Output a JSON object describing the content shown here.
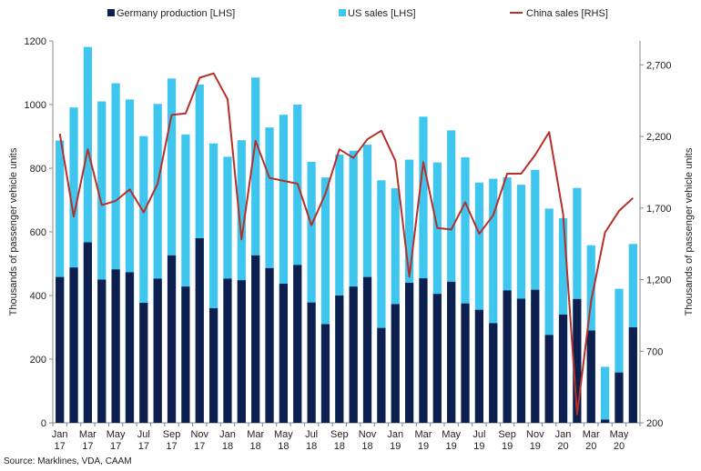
{
  "chart_data": {
    "type": "bar",
    "title": "",
    "categories": [
      "Jan 17",
      "Feb 17",
      "Mar 17",
      "Apr 17",
      "May 17",
      "Jun 17",
      "Jul 17",
      "Aug 17",
      "Sep 17",
      "Oct 17",
      "Nov 17",
      "Dec 17",
      "Jan 18",
      "Feb 18",
      "Mar 18",
      "Apr 18",
      "May 18",
      "Jun 18",
      "Jul 18",
      "Aug 18",
      "Sep 18",
      "Oct 18",
      "Nov 18",
      "Dec 18",
      "Jan 19",
      "Feb 19",
      "Mar 19",
      "Apr 19",
      "May 19",
      "Jun 19",
      "Jul 19",
      "Aug 19",
      "Sep 19",
      "Oct 19",
      "Nov 19",
      "Dec 19",
      "Jan 20",
      "Feb 20",
      "Mar 20",
      "Apr 20",
      "May 20",
      "Jun 20"
    ],
    "x_tick_labels": [
      {
        "index": 0,
        "month": "Jan",
        "year": "17"
      },
      {
        "index": 2,
        "month": "Mar",
        "year": "17"
      },
      {
        "index": 4,
        "month": "May",
        "year": "17"
      },
      {
        "index": 6,
        "month": "Jul",
        "year": "17"
      },
      {
        "index": 8,
        "month": "Sep",
        "year": "17"
      },
      {
        "index": 10,
        "month": "Nov",
        "year": "17"
      },
      {
        "index": 12,
        "month": "Jan",
        "year": "18"
      },
      {
        "index": 14,
        "month": "Mar",
        "year": "18"
      },
      {
        "index": 16,
        "month": "May",
        "year": "18"
      },
      {
        "index": 18,
        "month": "Jul",
        "year": "18"
      },
      {
        "index": 20,
        "month": "Sep",
        "year": "18"
      },
      {
        "index": 22,
        "month": "Nov",
        "year": "18"
      },
      {
        "index": 24,
        "month": "Jan",
        "year": "19"
      },
      {
        "index": 26,
        "month": "Mar",
        "year": "19"
      },
      {
        "index": 28,
        "month": "May",
        "year": "19"
      },
      {
        "index": 30,
        "month": "Jul",
        "year": "19"
      },
      {
        "index": 32,
        "month": "Sep",
        "year": "19"
      },
      {
        "index": 34,
        "month": "Nov",
        "year": "19"
      },
      {
        "index": 36,
        "month": "Jan",
        "year": "20"
      },
      {
        "index": 38,
        "month": "Mar",
        "year": "20"
      },
      {
        "index": 40,
        "month": "May",
        "year": "20"
      }
    ],
    "series": [
      {
        "name": "Germany production [LHS]",
        "type": "bar",
        "axis": "left",
        "color": "#0d1f4e",
        "values": [
          458,
          488,
          567,
          450,
          482,
          473,
          377,
          453,
          526,
          428,
          580,
          360,
          453,
          448,
          526,
          486,
          437,
          496,
          378,
          310,
          400,
          428,
          458,
          298,
          373,
          440,
          454,
          405,
          443,
          375,
          355,
          313,
          416,
          390,
          418,
          276,
          340,
          389,
          290,
          10,
          158,
          300
        ]
      },
      {
        "name": "US sales [LHS]",
        "type": "bar",
        "axis": "left",
        "color": "#3ec6ee",
        "values": [
          887,
          991,
          1181,
          1010,
          1067,
          1016,
          901,
          1002,
          1082,
          906,
          1063,
          878,
          836,
          888,
          1085,
          928,
          968,
          1000,
          820,
          771,
          843,
          855,
          874,
          762,
          737,
          827,
          962,
          818,
          919,
          834,
          755,
          767,
          771,
          748,
          795,
          673,
          643,
          738,
          558,
          176,
          421,
          562
        ]
      },
      {
        "name": "China sales [RHS]",
        "type": "line",
        "axis": "right",
        "color": "#b5302a",
        "values": [
          2220,
          1640,
          2110,
          1720,
          1750,
          1830,
          1670,
          1870,
          2350,
          2360,
          2610,
          2640,
          2460,
          1480,
          2170,
          1910,
          1890,
          1870,
          1580,
          1800,
          2110,
          2050,
          2180,
          2240,
          2030,
          1220,
          2020,
          1560,
          1550,
          1740,
          1520,
          1650,
          1940,
          1940,
          2070,
          2230,
          1660,
          260,
          1050,
          1530,
          1680,
          1770
        ]
      }
    ],
    "xlabel": "",
    "ylabel": "Thousands of passenger vehicle units",
    "ylabel_right": "Thousands of passenger vehicle units",
    "ylim": [
      0,
      1200
    ],
    "ylim_right": [
      200,
      2867
    ],
    "yticks": [
      "0",
      "200",
      "400",
      "600",
      "800",
      "1000",
      "1200"
    ],
    "yticks_right": [
      "200",
      "700",
      "1,200",
      "1,700",
      "2,200",
      "2,700"
    ],
    "yticks_right_values": [
      200,
      700,
      1200,
      1700,
      2200,
      2700
    ],
    "legend_position": "top",
    "grid": false
  },
  "source": "Source: Marklines, VDA, CAAM"
}
